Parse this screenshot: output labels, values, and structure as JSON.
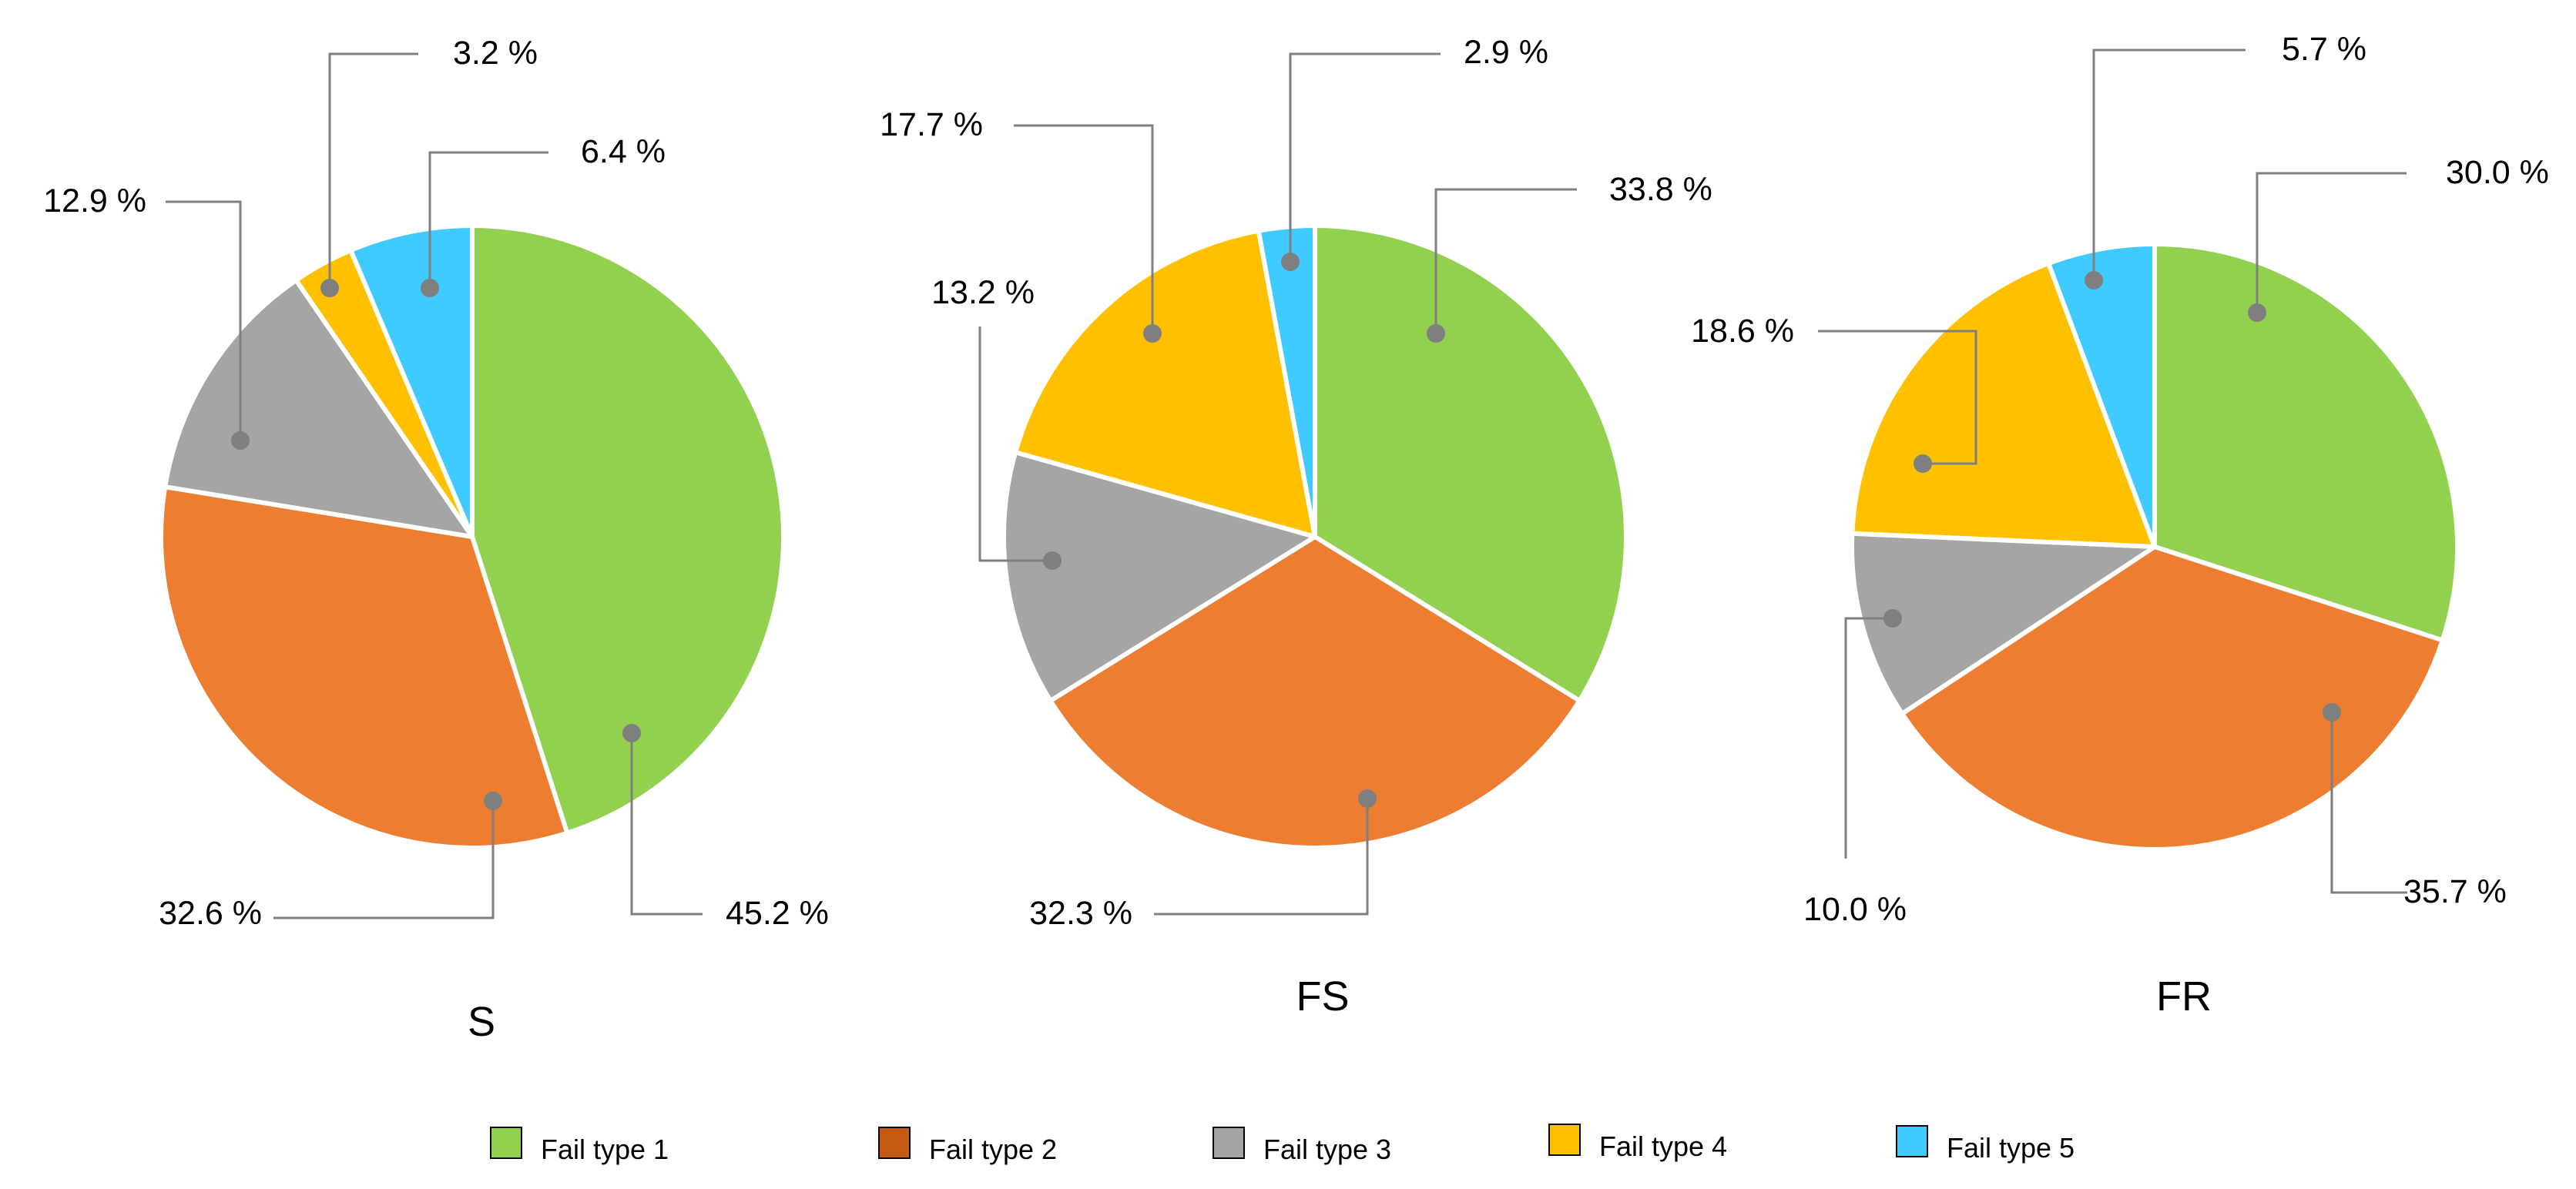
{
  "colors": {
    "Fail type 1": "#92d050",
    "Fail type 2": "#ed7d31",
    "Fail type 3": "#a5a5a5",
    "Fail type 4": "#ffc000",
    "Fail type 5": "#3fcbff",
    "legend_fail_type_2": "#c55a11",
    "leader": "#7f7f7f",
    "slice_border": "#ffffff"
  },
  "legend": {
    "placement": "bottom",
    "items": [
      "Fail type 1",
      "Fail type 2",
      "Fail type 3",
      "Fail type 4",
      "Fail type 5"
    ]
  },
  "chart_data": [
    {
      "type": "pie",
      "title": "S",
      "categories": [
        "Fail type 1",
        "Fail type 2",
        "Fail type 3",
        "Fail type 4",
        "Fail type 5"
      ],
      "values": [
        45.2,
        32.6,
        12.9,
        3.2,
        6.4
      ],
      "labels": [
        "45.2 %",
        "32.6 %",
        "12.9 %",
        "3.2 %",
        "6.4 %"
      ]
    },
    {
      "type": "pie",
      "title": "FS",
      "categories": [
        "Fail type 1",
        "Fail type 2",
        "Fail type 3",
        "Fail type 4",
        "Fail type 5"
      ],
      "values": [
        33.8,
        32.3,
        13.2,
        17.7,
        2.9
      ],
      "labels": [
        "33.8 %",
        "32.3 %",
        "13.2 %",
        "17.7 %",
        "2.9 %"
      ]
    },
    {
      "type": "pie",
      "title": "FR",
      "categories": [
        "Fail type 1",
        "Fail type 2",
        "Fail type 3",
        "Fail type 4",
        "Fail type 5"
      ],
      "values": [
        30.0,
        35.7,
        10.0,
        18.6,
        5.7
      ],
      "labels": [
        "30.0 %",
        "35.7 %",
        "10.0 %",
        "18.6 %",
        "5.7 %"
      ]
    }
  ]
}
